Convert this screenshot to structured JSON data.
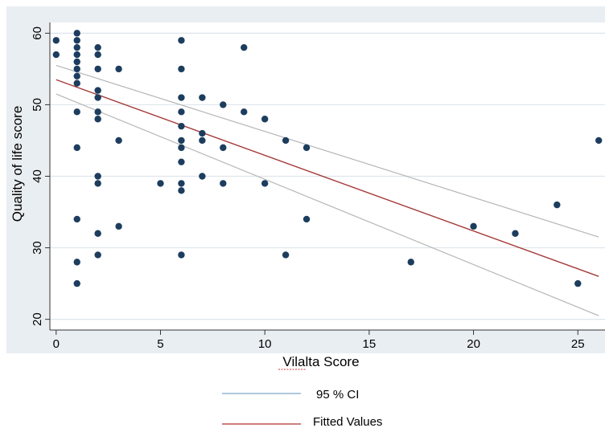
{
  "chart_data": {
    "type": "scatter",
    "xlabel": "Vilalta Score",
    "ylabel": "Quality of life score",
    "xlim": [
      -0.3,
      26.3
    ],
    "ylim": [
      18.5,
      61.5
    ],
    "xticks": [
      0,
      5,
      10,
      15,
      20,
      25
    ],
    "yticks": [
      20,
      30,
      40,
      50,
      60
    ],
    "grid": true,
    "legend_position": "bottom-center",
    "colors": {
      "frame": "#e9eef2",
      "plot_bg": "#ffffff",
      "grid": "#dde6eb",
      "points": "#1c3d5e",
      "fitted": "#a53a3a",
      "ci": "#b5b5b5",
      "legend_ci": "#7ea6c8",
      "legend_fitted": "#b03030"
    },
    "series": [
      {
        "kind": "scatter",
        "points": [
          [
            0,
            59
          ],
          [
            0,
            57
          ],
          [
            1,
            60
          ],
          [
            1,
            59
          ],
          [
            1,
            58
          ],
          [
            1,
            57
          ],
          [
            1,
            56
          ],
          [
            1,
            55
          ],
          [
            1,
            54
          ],
          [
            1,
            53
          ],
          [
            1,
            49
          ],
          [
            1,
            44
          ],
          [
            1,
            34
          ],
          [
            1,
            28
          ],
          [
            1,
            25
          ],
          [
            2,
            58
          ],
          [
            2,
            57
          ],
          [
            2,
            55
          ],
          [
            2,
            52
          ],
          [
            2,
            51
          ],
          [
            2,
            49
          ],
          [
            2,
            48
          ],
          [
            2,
            40
          ],
          [
            2,
            39
          ],
          [
            2,
            32
          ],
          [
            2,
            29
          ],
          [
            3,
            55
          ],
          [
            3,
            45
          ],
          [
            3,
            33
          ],
          [
            5,
            39
          ],
          [
            6,
            59
          ],
          [
            6,
            55
          ],
          [
            6,
            51
          ],
          [
            6,
            49
          ],
          [
            6,
            47
          ],
          [
            6,
            45
          ],
          [
            6,
            44
          ],
          [
            6,
            42
          ],
          [
            6,
            39
          ],
          [
            6,
            38
          ],
          [
            6,
            29
          ],
          [
            7,
            51
          ],
          [
            7,
            46
          ],
          [
            7,
            45
          ],
          [
            7,
            40
          ],
          [
            8,
            50
          ],
          [
            8,
            44
          ],
          [
            8,
            39
          ],
          [
            9,
            58
          ],
          [
            9,
            49
          ],
          [
            10,
            48
          ],
          [
            10,
            39
          ],
          [
            11,
            45
          ],
          [
            11,
            29
          ],
          [
            12,
            44
          ],
          [
            12,
            34
          ],
          [
            17,
            28
          ],
          [
            20,
            33
          ],
          [
            22,
            32
          ],
          [
            24,
            36
          ],
          [
            25,
            25
          ],
          [
            26,
            45
          ]
        ]
      },
      {
        "name": "Fitted Values",
        "kind": "line",
        "x": [
          0,
          26
        ],
        "y": [
          53.5,
          26
        ]
      },
      {
        "name": "95 % CI",
        "kind": "line",
        "x": [
          0,
          26
        ],
        "y": [
          55.5,
          31.5
        ]
      },
      {
        "name": "95 % CI",
        "kind": "line",
        "x": [
          0,
          26
        ],
        "y": [
          51.5,
          20.5
        ]
      }
    ]
  },
  "legend": {
    "items": [
      {
        "label": "95 % CI",
        "color": "#7ea6c8"
      },
      {
        "label": "Fitted Values",
        "color": "#b03030"
      }
    ]
  }
}
